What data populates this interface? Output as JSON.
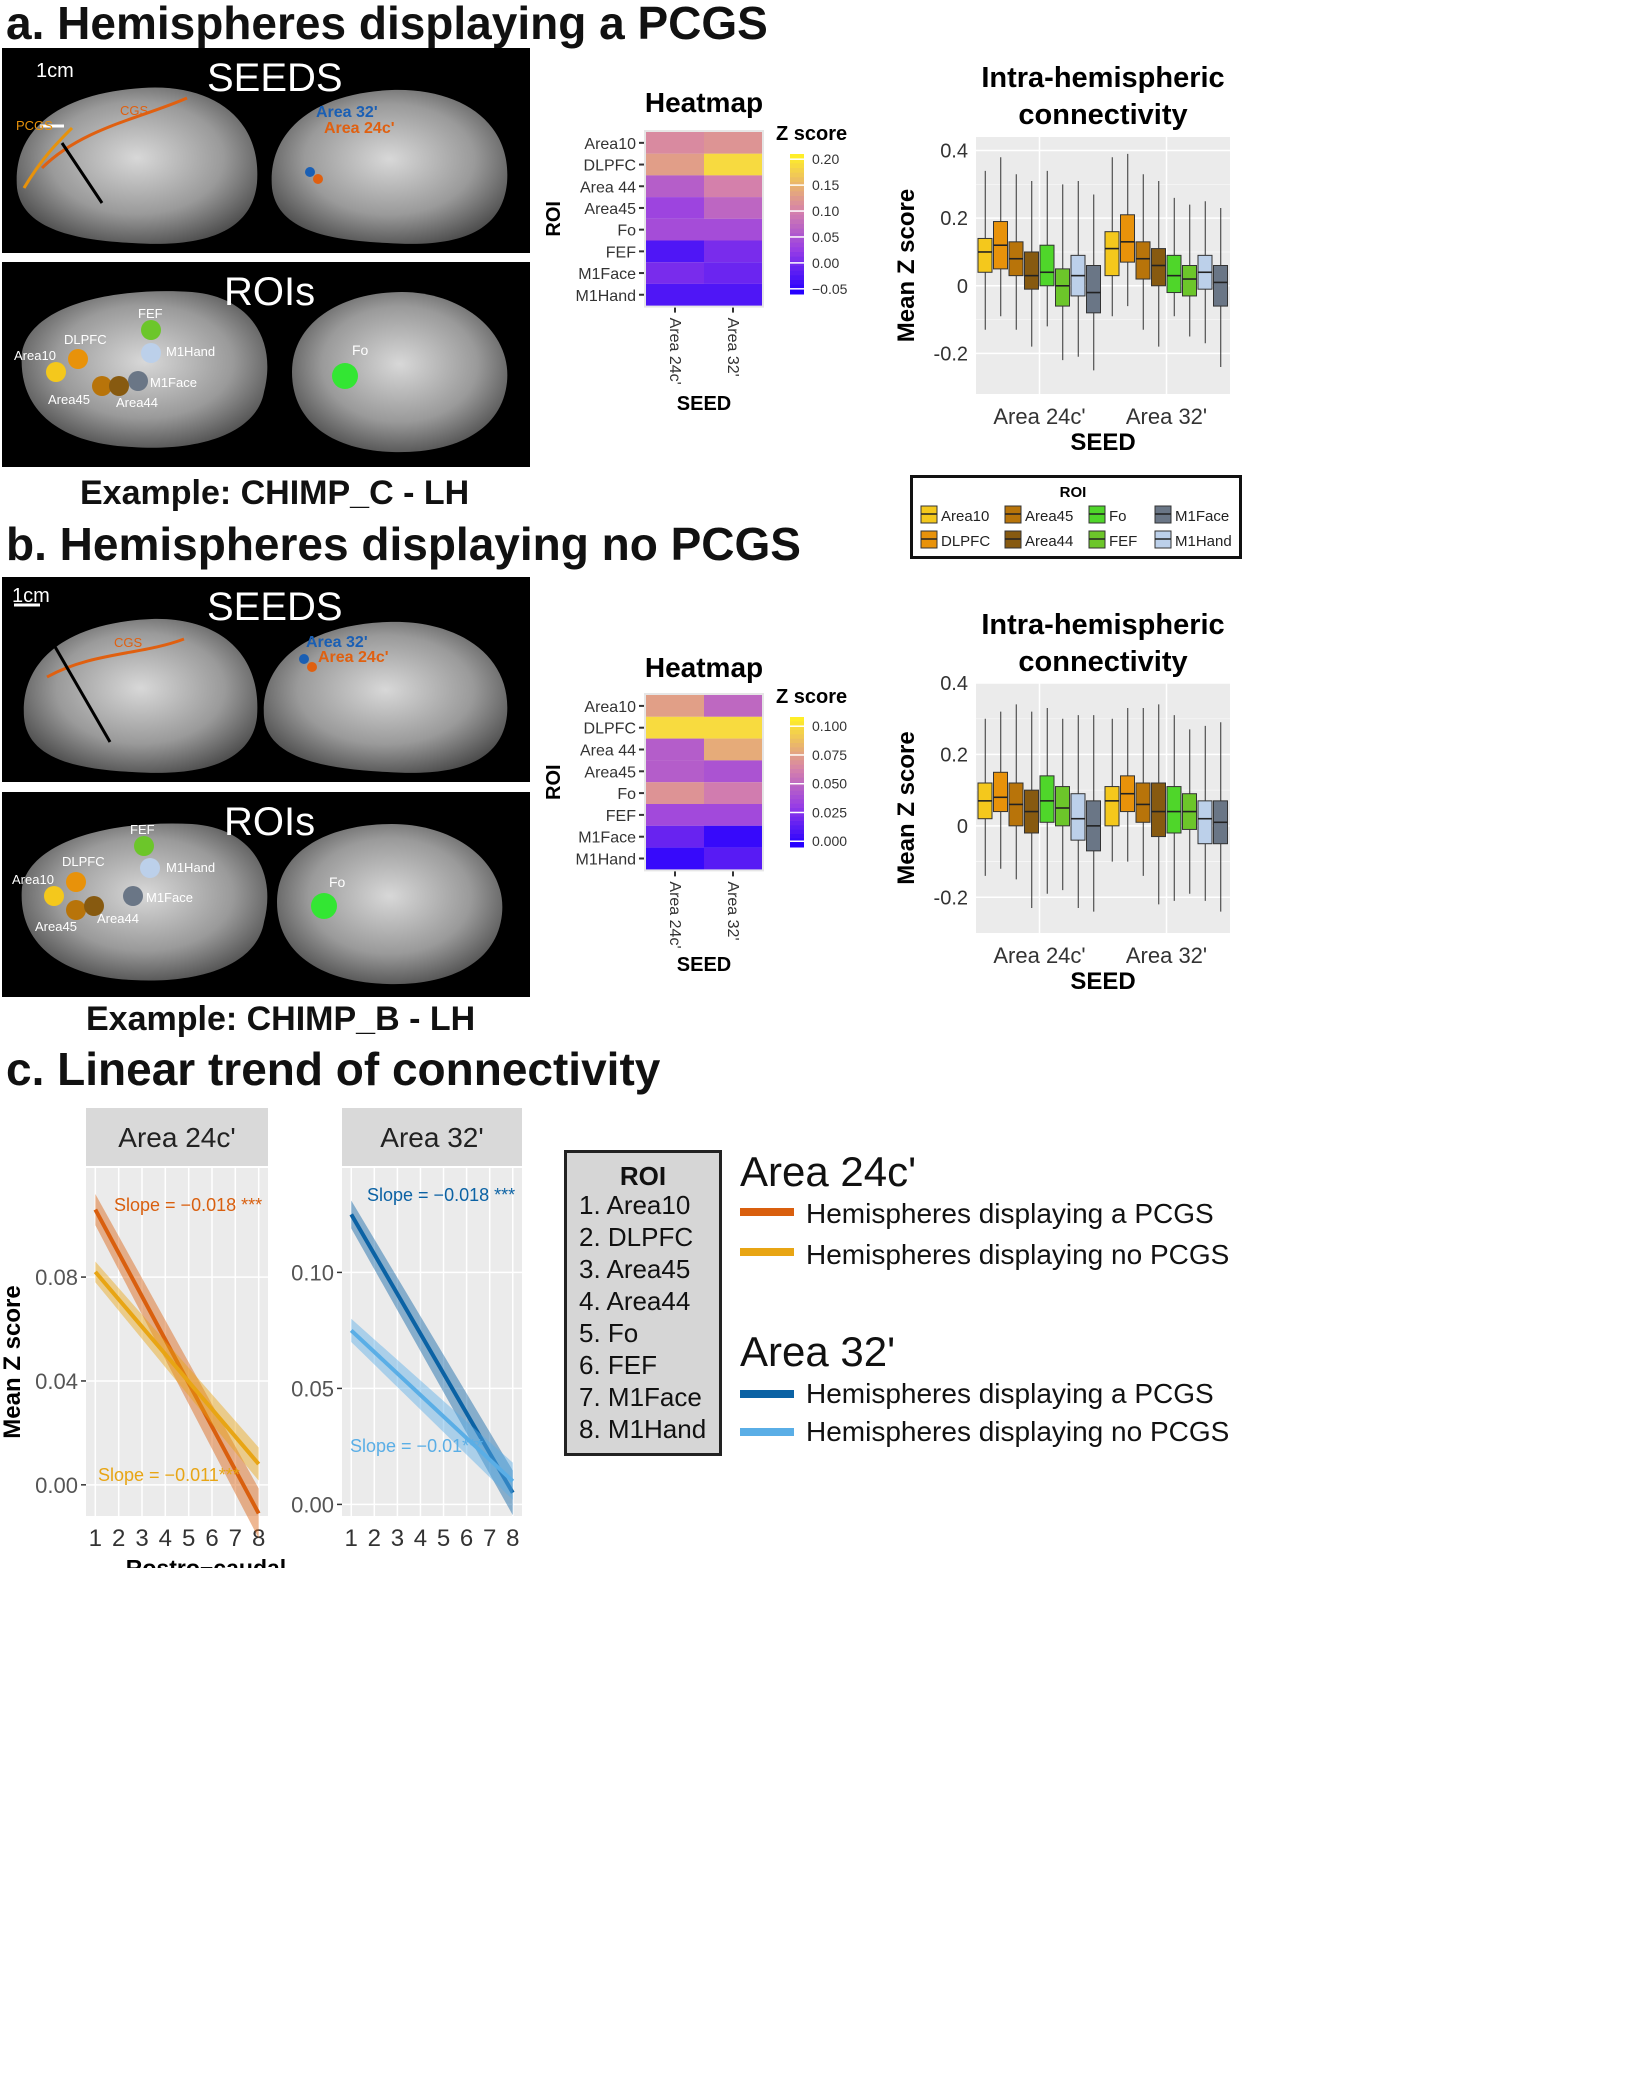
{
  "sections": {
    "a_title": "a. Hemispheres displaying a PCGS",
    "b_title": "b. Hemispheres displaying no PCGS",
    "c_title": "c. Linear trend of connectivity"
  },
  "brain_a": {
    "seeds_label": "SEEDS",
    "rois_label": "ROIs",
    "scale": "1cm",
    "sulci": [
      "PCGS",
      "CGS"
    ],
    "seed_names": [
      "Area 32'",
      "Area 24c'"
    ],
    "roi_names": [
      "FEF",
      "DLPFC",
      "M1Hand",
      "Area10",
      "M1Face",
      "Area45",
      "Area44",
      "Fo"
    ],
    "example": "Example: CHIMP_C - LH"
  },
  "brain_b": {
    "seeds_label": "SEEDS",
    "rois_label": "ROIs",
    "scale": "1cm",
    "sulci": [
      "CGS"
    ],
    "seed_names": [
      "Area 32'",
      "Area 24c'"
    ],
    "roi_names": [
      "FEF",
      "DLPFC",
      "M1Hand",
      "Area10",
      "M1Face",
      "Area45",
      "Area44",
      "Fo"
    ],
    "example": "Example: CHIMP_B - LH"
  },
  "colors": {
    "Area10": "#f4c81c",
    "DLPFC": "#e8920a",
    "Area45": "#b8740a",
    "Area44": "#875a10",
    "Fo": "#4fd62a",
    "FEF": "#6cc62a",
    "M1Face": "#6a7686",
    "M1Hand": "#bcd0ea",
    "seed32": "#1a5fb4",
    "seed24": "#e06010",
    "pcgs24": "#d95f0e",
    "nopcgs24": "#e8a514",
    "pcgs32": "#0b62a4",
    "nopcgs32": "#5aaee6"
  },
  "chart_data": [
    {
      "id": "heatmap_a",
      "type": "heatmap",
      "title": "Heatmap",
      "xlabel": "SEED",
      "ylabel": "ROI",
      "x": [
        "Area 24c'",
        "Area 32'"
      ],
      "y": [
        "Area10",
        "DLPFC",
        "Area 44",
        "Area45",
        "Fo",
        "FEF",
        "M1Face",
        "M1Hand"
      ],
      "values": [
        [
          0.11,
          0.12
        ],
        [
          0.13,
          0.19
        ],
        [
          0.06,
          0.1
        ],
        [
          0.03,
          0.07
        ],
        [
          0.04,
          0.04
        ],
        [
          -0.03,
          0.0
        ],
        [
          0.0,
          -0.01
        ],
        [
          -0.03,
          -0.03
        ]
      ],
      "colorbar": {
        "title": "Z score",
        "ticks": [
          "0.20",
          "0.15",
          "0.10",
          "0.05",
          "0.00",
          "−0.05"
        ],
        "range": [
          -0.06,
          0.21
        ]
      }
    },
    {
      "id": "box_a",
      "type": "box",
      "title": "Intra-hemispheric connectivity",
      "xlabel": "SEED",
      "ylabel": "Mean Z score",
      "categories": [
        "Area 24c'",
        "Area 32'"
      ],
      "yticks": [
        "0.4",
        "0.2",
        "0",
        "-0.2"
      ],
      "ylim": [
        -0.32,
        0.44
      ],
      "series": [
        {
          "name": "Area10",
          "groups": [
            [
              -0.13,
              0.04,
              0.1,
              0.14,
              0.34
            ],
            [
              -0.09,
              0.03,
              0.11,
              0.16,
              0.38
            ]
          ]
        },
        {
          "name": "DLPFC",
          "groups": [
            [
              -0.09,
              0.05,
              0.12,
              0.19,
              0.38
            ],
            [
              -0.06,
              0.07,
              0.13,
              0.21,
              0.39
            ]
          ]
        },
        {
          "name": "Area45",
          "groups": [
            [
              -0.13,
              0.03,
              0.08,
              0.13,
              0.33
            ],
            [
              -0.13,
              0.02,
              0.08,
              0.13,
              0.33
            ]
          ]
        },
        {
          "name": "Area44",
          "groups": [
            [
              -0.18,
              -0.01,
              0.03,
              0.1,
              0.31
            ],
            [
              -0.18,
              0.0,
              0.06,
              0.11,
              0.31
            ]
          ]
        },
        {
          "name": "Fo",
          "groups": [
            [
              -0.12,
              0.0,
              0.04,
              0.12,
              0.34
            ],
            [
              -0.09,
              -0.02,
              0.03,
              0.09,
              0.26
            ]
          ]
        },
        {
          "name": "FEF",
          "groups": [
            [
              -0.22,
              -0.06,
              0.0,
              0.05,
              0.3
            ],
            [
              -0.15,
              -0.03,
              0.02,
              0.06,
              0.24
            ]
          ]
        },
        {
          "name": "M1Hand",
          "groups": [
            [
              -0.21,
              -0.03,
              0.03,
              0.09,
              0.31
            ],
            [
              -0.17,
              -0.01,
              0.04,
              0.09,
              0.25
            ]
          ]
        },
        {
          "name": "M1Face",
          "groups": [
            [
              -0.25,
              -0.08,
              -0.02,
              0.06,
              0.27
            ],
            [
              -0.24,
              -0.06,
              0.01,
              0.06,
              0.23
            ]
          ]
        }
      ],
      "legend": {
        "title": "ROI",
        "entries": [
          "Area10",
          "DLPFC",
          "Area45",
          "Area44",
          "Fo",
          "FEF",
          "M1Face",
          "M1Hand"
        ]
      }
    },
    {
      "id": "heatmap_b",
      "type": "heatmap",
      "title": "Heatmap",
      "xlabel": "SEED",
      "ylabel": "ROI",
      "x": [
        "Area 24c'",
        "Area 32'"
      ],
      "y": [
        "Area10",
        "DLPFC",
        "Area 44",
        "Area45",
        "Fo",
        "FEF",
        "M1Face",
        "M1Hand"
      ],
      "values": [
        [
          0.075,
          0.05
        ],
        [
          0.1,
          0.1
        ],
        [
          0.045,
          0.08
        ],
        [
          0.045,
          0.04
        ],
        [
          0.07,
          0.06
        ],
        [
          0.035,
          0.035
        ],
        [
          0.015,
          0.0
        ],
        [
          0.0,
          0.01
        ]
      ],
      "colorbar": {
        "title": "Z score",
        "ticks": [
          "0.100",
          "0.075",
          "0.050",
          "0.025",
          "0.000"
        ],
        "range": [
          -0.005,
          0.108
        ]
      }
    },
    {
      "id": "box_b",
      "type": "box",
      "title": "Intra-hemispheric connectivity",
      "xlabel": "SEED",
      "ylabel": "Mean Z score",
      "categories": [
        "Area 24c'",
        "Area 32'"
      ],
      "yticks": [
        "0.4",
        "0.2",
        "0",
        "-0.2"
      ],
      "ylim": [
        -0.3,
        0.4
      ],
      "series": [
        {
          "name": "Area10",
          "groups": [
            [
              -0.14,
              0.02,
              0.07,
              0.12,
              0.3
            ],
            [
              -0.1,
              0.0,
              0.07,
              0.11,
              0.3
            ]
          ]
        },
        {
          "name": "DLPFC",
          "groups": [
            [
              -0.12,
              0.04,
              0.08,
              0.15,
              0.32
            ],
            [
              -0.1,
              0.04,
              0.09,
              0.14,
              0.33
            ]
          ]
        },
        {
          "name": "Area45",
          "groups": [
            [
              -0.15,
              0.0,
              0.06,
              0.12,
              0.34
            ],
            [
              -0.14,
              0.01,
              0.06,
              0.12,
              0.33
            ]
          ]
        },
        {
          "name": "Area44",
          "groups": [
            [
              -0.23,
              -0.02,
              0.04,
              0.1,
              0.32
            ],
            [
              -0.22,
              -0.03,
              0.04,
              0.12,
              0.34
            ]
          ]
        },
        {
          "name": "Fo",
          "groups": [
            [
              -0.19,
              0.01,
              0.07,
              0.14,
              0.33
            ],
            [
              -0.21,
              -0.02,
              0.04,
              0.11,
              0.31
            ]
          ]
        },
        {
          "name": "FEF",
          "groups": [
            [
              -0.18,
              0.0,
              0.05,
              0.11,
              0.3
            ],
            [
              -0.19,
              -0.01,
              0.04,
              0.09,
              0.27
            ]
          ]
        },
        {
          "name": "M1Hand",
          "groups": [
            [
              -0.23,
              -0.04,
              0.02,
              0.09,
              0.31
            ],
            [
              -0.21,
              -0.05,
              0.02,
              0.07,
              0.28
            ]
          ]
        },
        {
          "name": "M1Face",
          "groups": [
            [
              -0.24,
              -0.07,
              0.0,
              0.07,
              0.31
            ],
            [
              -0.24,
              -0.05,
              0.01,
              0.07,
              0.29
            ]
          ]
        }
      ]
    },
    {
      "id": "trend_24",
      "type": "line",
      "facet": "Area 24c'",
      "xlabel": "Rostro−caudal position (ROIline)",
      "ylabel": "Mean Z score",
      "x": [
        1,
        2,
        3,
        4,
        5,
        6,
        7,
        8
      ],
      "xlim": [
        0.6,
        8.4
      ],
      "ylim": [
        -0.012,
        0.122
      ],
      "yticks": [
        "0.08",
        "0.04",
        "0.00"
      ],
      "ytick_values": [
        0.08,
        0.04,
        0.0
      ],
      "series": [
        {
          "name": "Hemispheres displaying a PCGS",
          "start": 0.106,
          "end": -0.011,
          "band": 0.006,
          "slope_label": "Slope = −0.018 ***"
        },
        {
          "name": "Hemispheres displaying no PCGS",
          "start": 0.082,
          "end": 0.008,
          "band": 0.004,
          "slope_label": "Slope = −0.011***"
        }
      ]
    },
    {
      "id": "trend_32",
      "type": "line",
      "facet": "Area 32'",
      "xlabel": "",
      "ylabel": "",
      "x": [
        1,
        2,
        3,
        4,
        5,
        6,
        7,
        8
      ],
      "xlim": [
        0.6,
        8.4
      ],
      "ylim": [
        -0.005,
        0.145
      ],
      "yticks": [
        "0.10",
        "0.05",
        "0.00"
      ],
      "ytick_values": [
        0.1,
        0.05,
        0.0
      ],
      "series": [
        {
          "name": "Hemispheres displaying a PCGS",
          "start": 0.125,
          "end": 0.005,
          "band": 0.006,
          "slope_label": "Slope = −0.018 ***"
        },
        {
          "name": "Hemispheres displaying no PCGS",
          "start": 0.075,
          "end": 0.01,
          "band": 0.005,
          "slope_label": "Slope = −0.01***"
        }
      ]
    }
  ],
  "roi_legend": {
    "title": "ROI",
    "items": [
      "1. Area10",
      "2. DLPFC",
      "3. Area45",
      "4. Area44",
      "5. Fo",
      "6. FEF",
      "7. M1Face",
      "8. M1Hand"
    ]
  },
  "trend_legend": {
    "group24": "Area 24c'",
    "group32": "Area 32'",
    "pcgs": "Hemispheres displaying a PCGS",
    "nopcgs": "Hemispheres displaying no PCGS"
  }
}
